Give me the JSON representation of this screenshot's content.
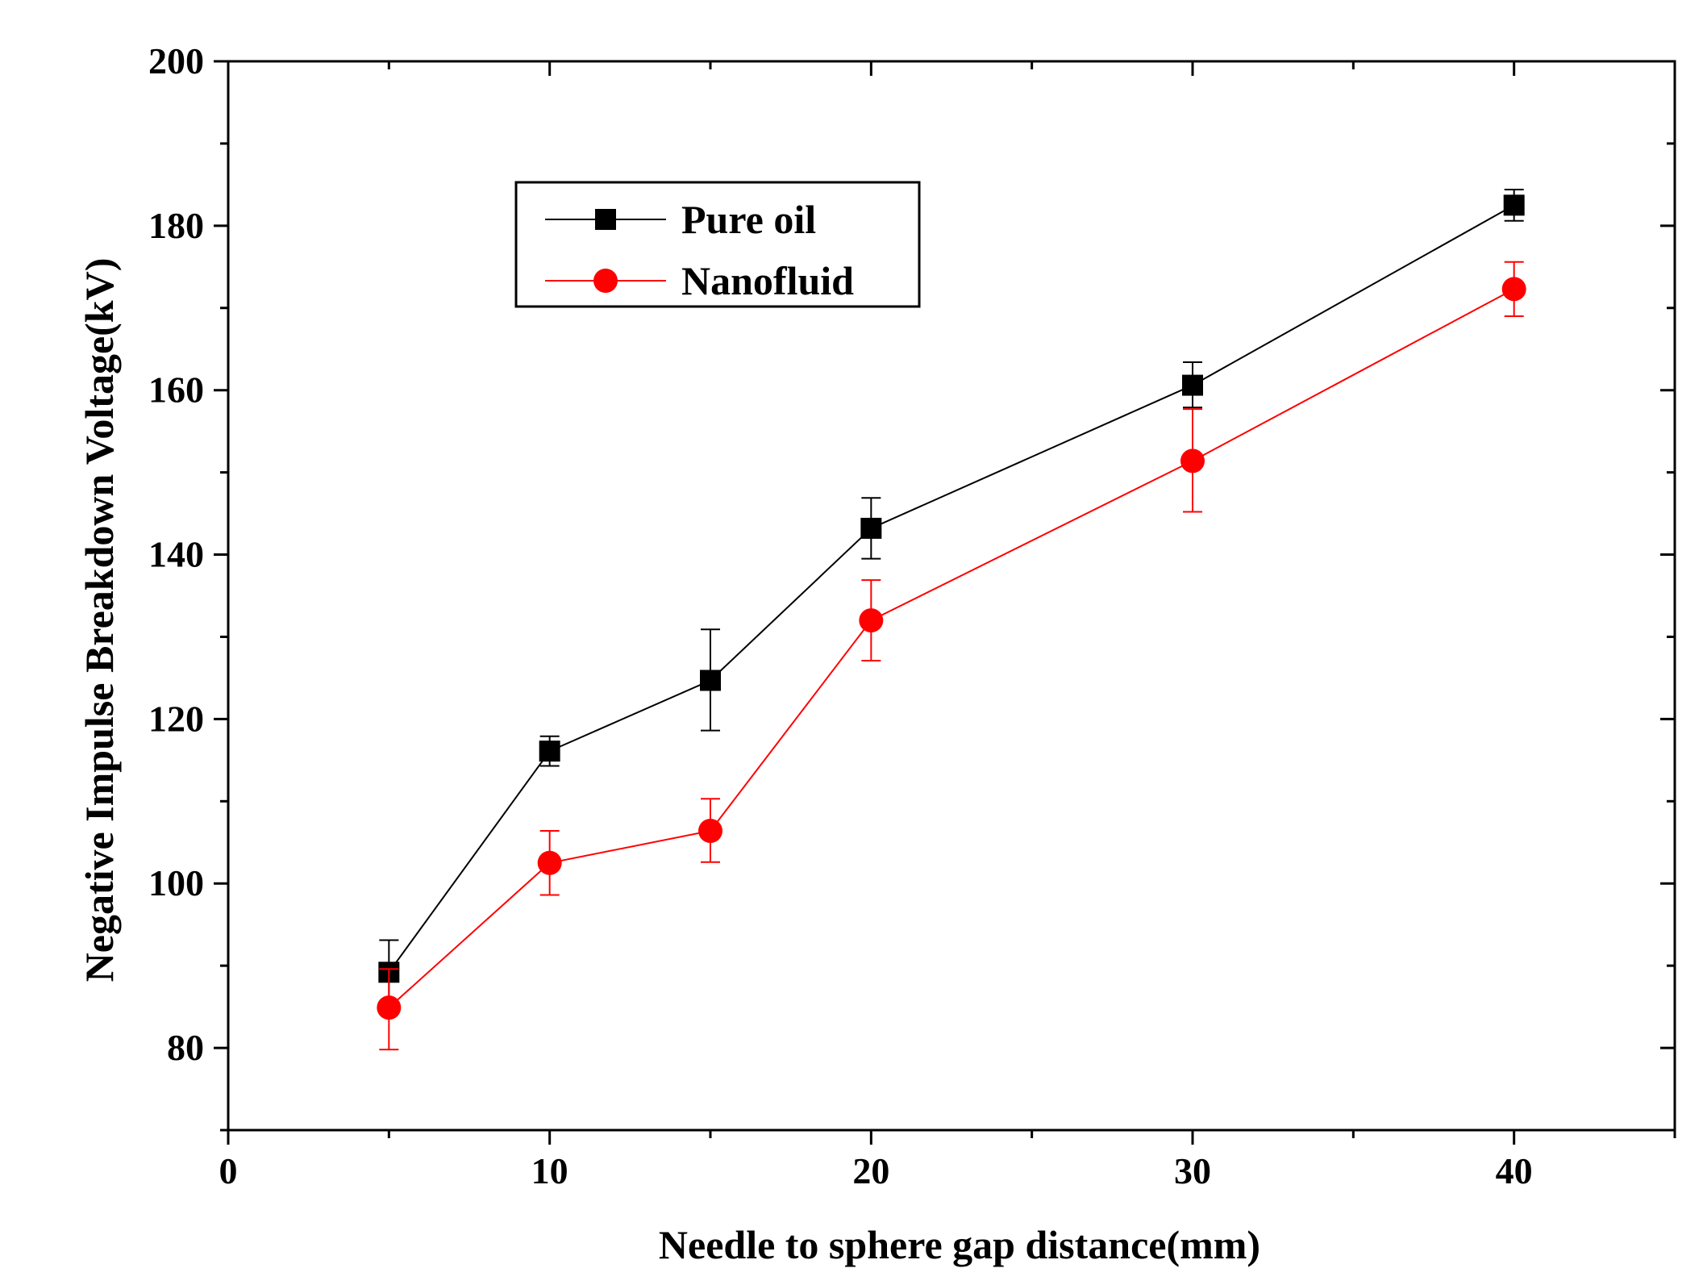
{
  "chart_data": {
    "type": "line",
    "title": "",
    "xlabel": "Needle to sphere gap distance(mm)",
    "ylabel": "Negative Impulse Breakdown Voltage(kV)",
    "xlim": [
      0,
      45
    ],
    "ylim": [
      70,
      200
    ],
    "x_ticks": [
      0,
      10,
      20,
      30,
      40
    ],
    "x_tick_labels": [
      "0",
      "10",
      "20",
      "30",
      "40"
    ],
    "y_ticks": [
      80,
      100,
      120,
      140,
      160,
      180,
      200
    ],
    "y_tick_labels": [
      "80",
      "100",
      "120",
      "140",
      "160",
      "180",
      "200"
    ],
    "x": [
      5,
      10,
      15,
      20,
      30,
      40
    ],
    "series": [
      {
        "name": "Pure oil",
        "color": "#000000",
        "marker": "square",
        "values": [
          89.2,
          116.1,
          124.7,
          143.2,
          160.6,
          182.5
        ],
        "error_low": [
          85.3,
          114.3,
          118.6,
          139.5,
          157.9,
          180.6
        ],
        "error_high": [
          93.1,
          117.9,
          130.9,
          146.9,
          163.4,
          184.4
        ]
      },
      {
        "name": "Nanofluid",
        "color": "#ff0000",
        "marker": "circle",
        "values": [
          84.9,
          102.5,
          106.4,
          132.0,
          151.4,
          172.3
        ],
        "error_low": [
          79.8,
          98.6,
          102.6,
          127.1,
          145.2,
          169.0
        ],
        "error_high": [
          89.6,
          106.4,
          110.3,
          136.9,
          157.7,
          175.6
        ]
      }
    ],
    "legend": {
      "placement": "top-left",
      "entries": [
        "Pure oil",
        "Nanofluid"
      ]
    }
  }
}
